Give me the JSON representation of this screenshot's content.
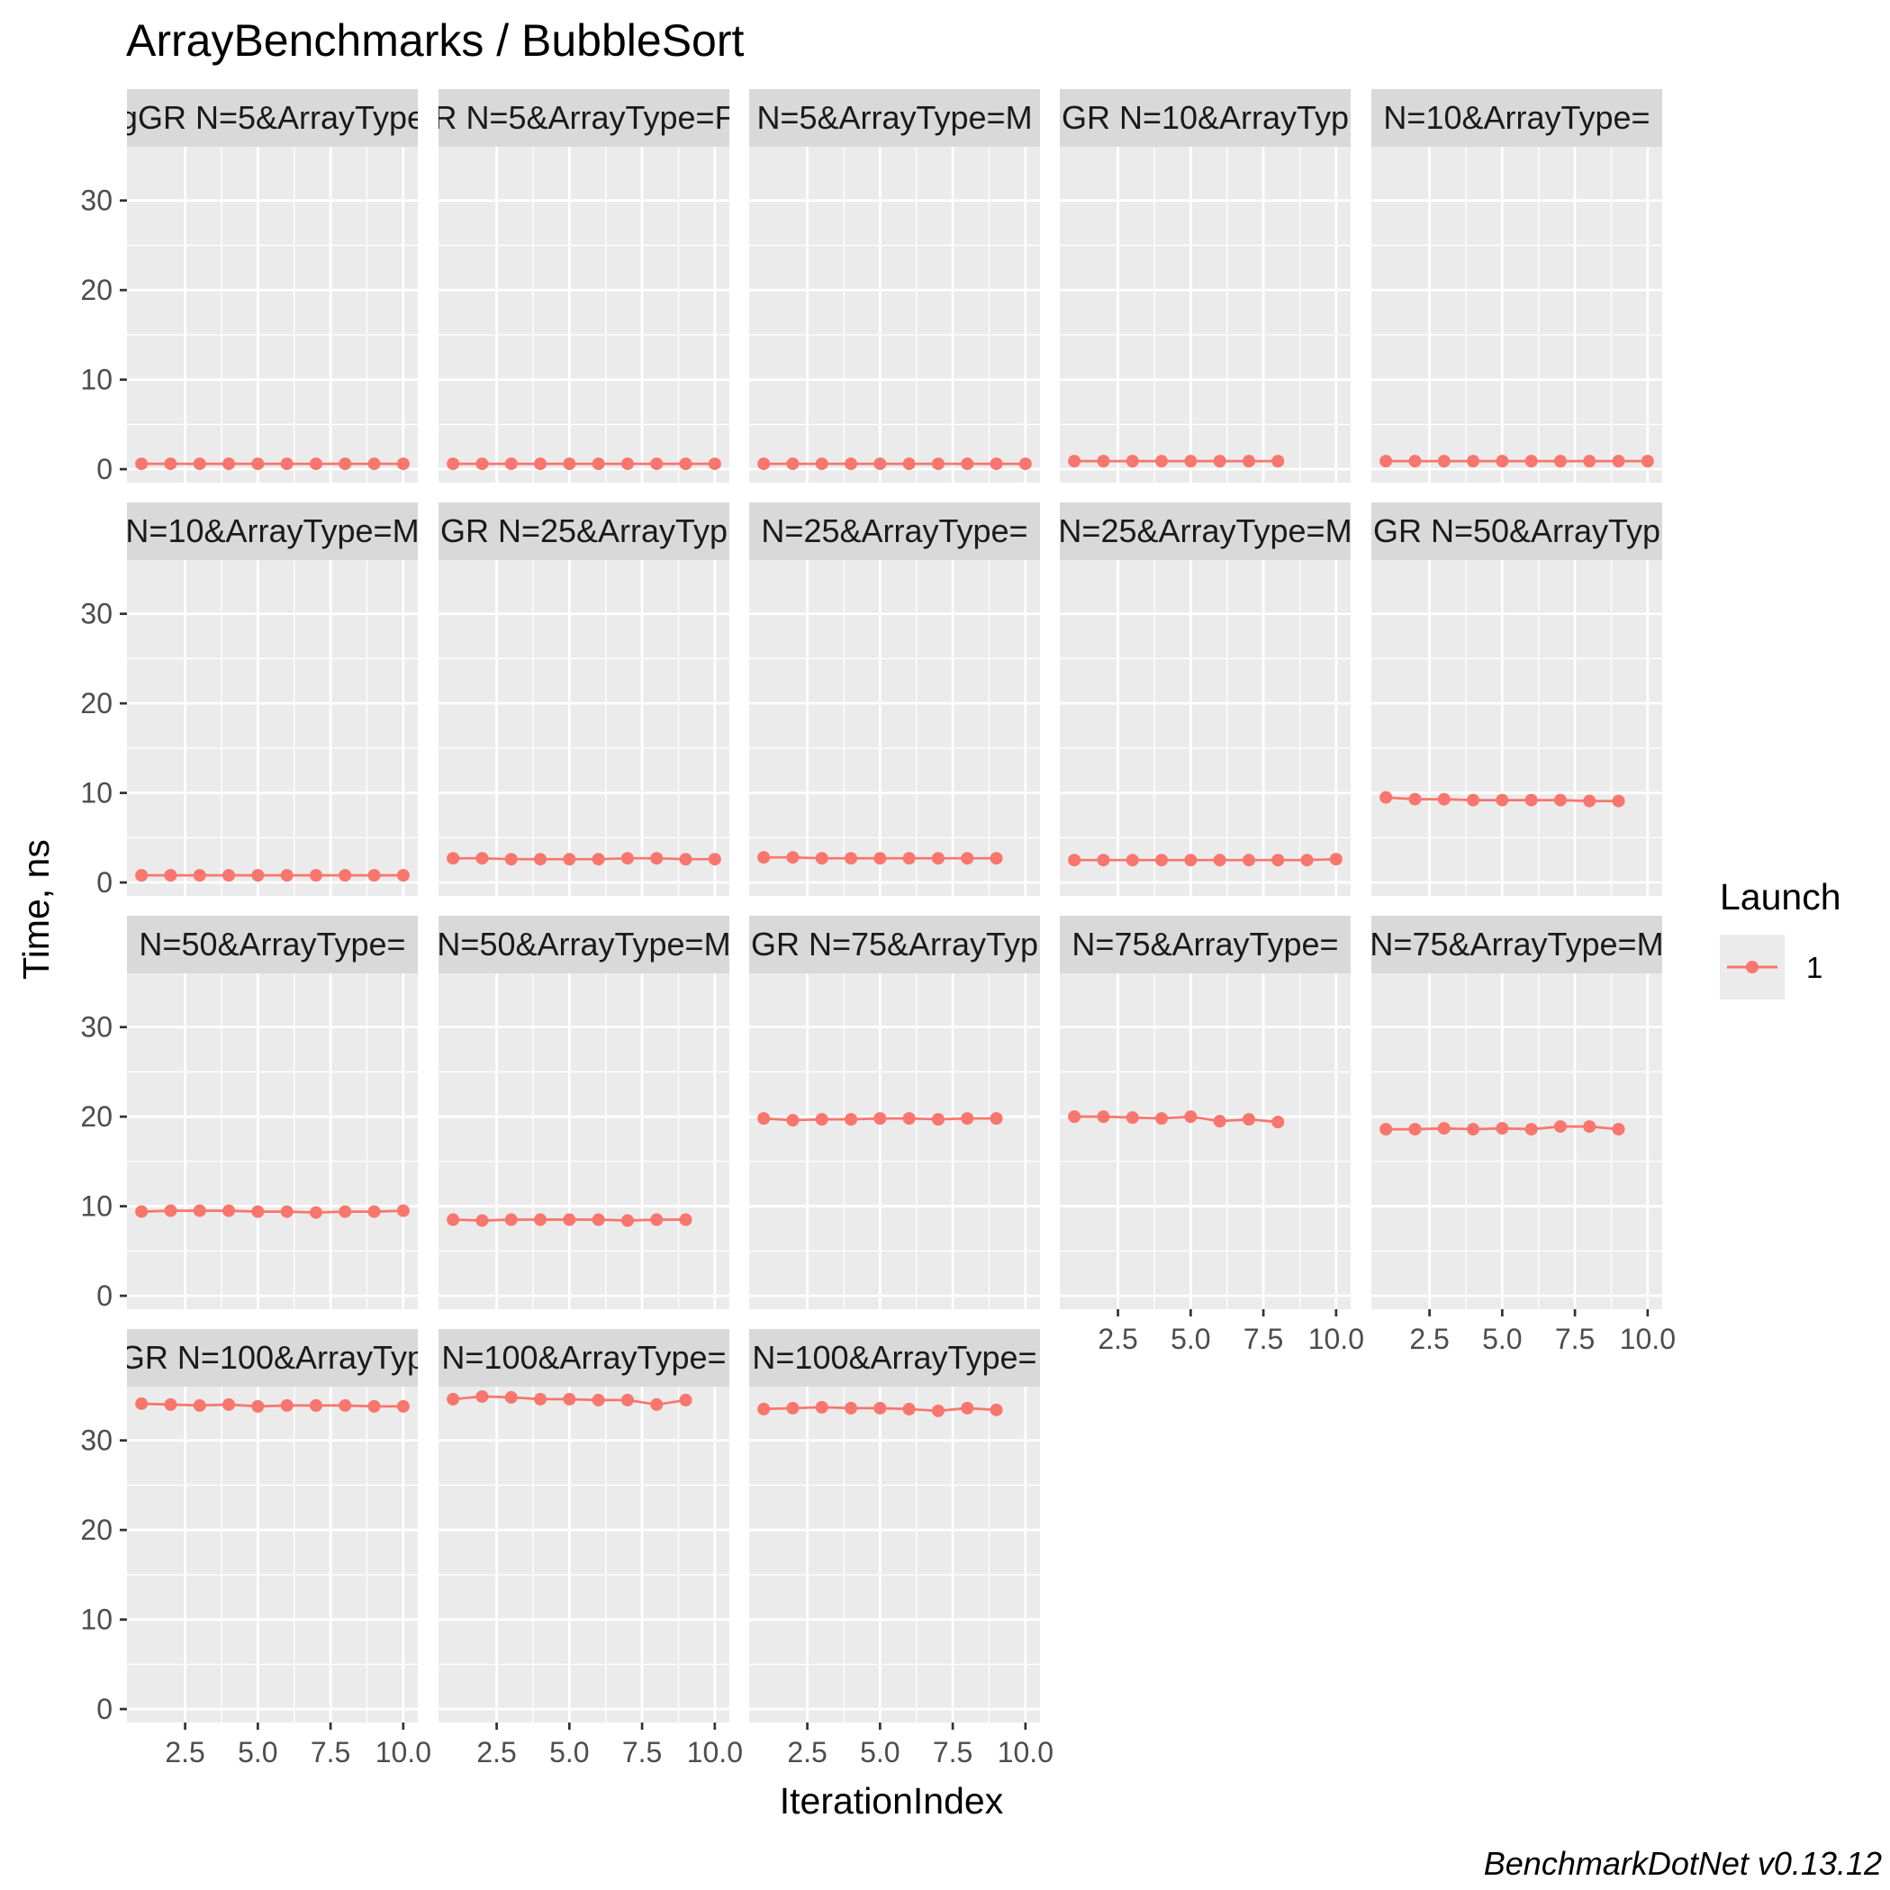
{
  "chart_data": {
    "type": "line",
    "title": "ArrayBenchmarks / BubbleSort",
    "xlabel": "IterationIndex",
    "ylabel": "Time, ns",
    "caption": "BenchmarkDotNet v0.13.12",
    "xlim": [
      0.5,
      10.5
    ],
    "ylim": [
      -1.5,
      36
    ],
    "x_ticks": [
      2.5,
      5.0,
      7.5,
      10.0
    ],
    "x_tick_labels": [
      "2.5",
      "5.0",
      "7.5",
      "10.0"
    ],
    "y_ticks": [
      0,
      10,
      20,
      30
    ],
    "y_tick_labels": [
      "0",
      "10",
      "20",
      "30"
    ],
    "grid": true,
    "legend": {
      "title": "Launch",
      "placement": "right",
      "entries": [
        {
          "label": "1",
          "color": "#F8766D"
        }
      ]
    },
    "series_color": "#F8766D",
    "panels": [
      {
        "label": "gGR N=5&ArrayType",
        "x": [
          1,
          2,
          3,
          4,
          5,
          6,
          7,
          8,
          9,
          10
        ],
        "y": [
          0.6,
          0.6,
          0.6,
          0.6,
          0.6,
          0.6,
          0.6,
          0.6,
          0.6,
          0.6
        ]
      },
      {
        "label": "R N=5&ArrayType=F",
        "x": [
          1,
          2,
          3,
          4,
          5,
          6,
          7,
          8,
          9,
          10
        ],
        "y": [
          0.6,
          0.6,
          0.6,
          0.6,
          0.6,
          0.6,
          0.6,
          0.6,
          0.6,
          0.6
        ]
      },
      {
        "label": "N=5&ArrayType=M",
        "x": [
          1,
          2,
          3,
          4,
          5,
          6,
          7,
          8,
          9,
          10
        ],
        "y": [
          0.6,
          0.6,
          0.6,
          0.6,
          0.6,
          0.6,
          0.6,
          0.6,
          0.6,
          0.6
        ]
      },
      {
        "label": "GR N=10&ArrayTyp",
        "x": [
          1,
          2,
          3,
          4,
          5,
          6,
          7,
          8
        ],
        "y": [
          0.9,
          0.9,
          0.9,
          0.9,
          0.9,
          0.9,
          0.9,
          0.9
        ]
      },
      {
        "label": "N=10&ArrayType=",
        "x": [
          1,
          2,
          3,
          4,
          5,
          6,
          7,
          8,
          9,
          10
        ],
        "y": [
          0.9,
          0.9,
          0.9,
          0.9,
          0.9,
          0.9,
          0.9,
          0.9,
          0.9,
          0.9
        ]
      },
      {
        "label": "N=10&ArrayType=M",
        "x": [
          1,
          2,
          3,
          4,
          5,
          6,
          7,
          8,
          9,
          10
        ],
        "y": [
          0.8,
          0.8,
          0.8,
          0.8,
          0.8,
          0.8,
          0.8,
          0.8,
          0.8,
          0.8
        ]
      },
      {
        "label": "GR N=25&ArrayTyp",
        "x": [
          1,
          2,
          3,
          4,
          5,
          6,
          7,
          8,
          9,
          10
        ],
        "y": [
          2.7,
          2.7,
          2.6,
          2.6,
          2.6,
          2.6,
          2.7,
          2.7,
          2.6,
          2.6
        ]
      },
      {
        "label": "N=25&ArrayType=",
        "x": [
          1,
          2,
          3,
          4,
          5,
          6,
          7,
          8,
          9
        ],
        "y": [
          2.8,
          2.8,
          2.7,
          2.7,
          2.7,
          2.7,
          2.7,
          2.7,
          2.7
        ]
      },
      {
        "label": "N=25&ArrayType=M",
        "x": [
          1,
          2,
          3,
          4,
          5,
          6,
          7,
          8,
          9,
          10
        ],
        "y": [
          2.5,
          2.5,
          2.5,
          2.5,
          2.5,
          2.5,
          2.5,
          2.5,
          2.5,
          2.6
        ]
      },
      {
        "label": "GR N=50&ArrayTyp",
        "x": [
          1,
          2,
          3,
          4,
          5,
          6,
          7,
          8,
          9
        ],
        "y": [
          9.5,
          9.3,
          9.3,
          9.2,
          9.2,
          9.2,
          9.2,
          9.1,
          9.1
        ]
      },
      {
        "label": "N=50&ArrayType=",
        "x": [
          1,
          2,
          3,
          4,
          5,
          6,
          7,
          8,
          9,
          10
        ],
        "y": [
          9.4,
          9.5,
          9.5,
          9.5,
          9.4,
          9.4,
          9.3,
          9.4,
          9.4,
          9.5
        ]
      },
      {
        "label": "N=50&ArrayType=M",
        "x": [
          1,
          2,
          3,
          4,
          5,
          6,
          7,
          8,
          9
        ],
        "y": [
          8.5,
          8.4,
          8.5,
          8.5,
          8.5,
          8.5,
          8.4,
          8.5,
          8.5
        ]
      },
      {
        "label": "GR N=75&ArrayTyp",
        "x": [
          1,
          2,
          3,
          4,
          5,
          6,
          7,
          8,
          9
        ],
        "y": [
          19.8,
          19.6,
          19.7,
          19.7,
          19.8,
          19.8,
          19.7,
          19.8,
          19.8
        ]
      },
      {
        "label": "N=75&ArrayType=",
        "x": [
          1,
          2,
          3,
          4,
          5,
          6,
          7,
          8
        ],
        "y": [
          20.0,
          20.0,
          19.9,
          19.8,
          20.0,
          19.5,
          19.7,
          19.4
        ]
      },
      {
        "label": "N=75&ArrayType=M",
        "x": [
          1,
          2,
          3,
          4,
          5,
          6,
          7,
          8,
          9
        ],
        "y": [
          18.6,
          18.6,
          18.7,
          18.6,
          18.7,
          18.6,
          18.9,
          18.9,
          18.6
        ]
      },
      {
        "label": "GR N=100&ArrayTyp",
        "x": [
          1,
          2,
          3,
          4,
          5,
          6,
          7,
          8,
          9,
          10
        ],
        "y": [
          34.1,
          34.0,
          33.9,
          34.0,
          33.8,
          33.9,
          33.9,
          33.9,
          33.8,
          33.8
        ]
      },
      {
        "label": "N=100&ArrayType=",
        "x": [
          1,
          2,
          3,
          4,
          5,
          6,
          7,
          8,
          9
        ],
        "y": [
          34.6,
          34.9,
          34.8,
          34.6,
          34.6,
          34.5,
          34.5,
          34.0,
          34.5
        ]
      },
      {
        "label": "N=100&ArrayType=",
        "x": [
          1,
          2,
          3,
          4,
          5,
          6,
          7,
          8,
          9
        ],
        "y": [
          33.5,
          33.6,
          33.7,
          33.6,
          33.6,
          33.5,
          33.3,
          33.6,
          33.4
        ]
      }
    ]
  }
}
